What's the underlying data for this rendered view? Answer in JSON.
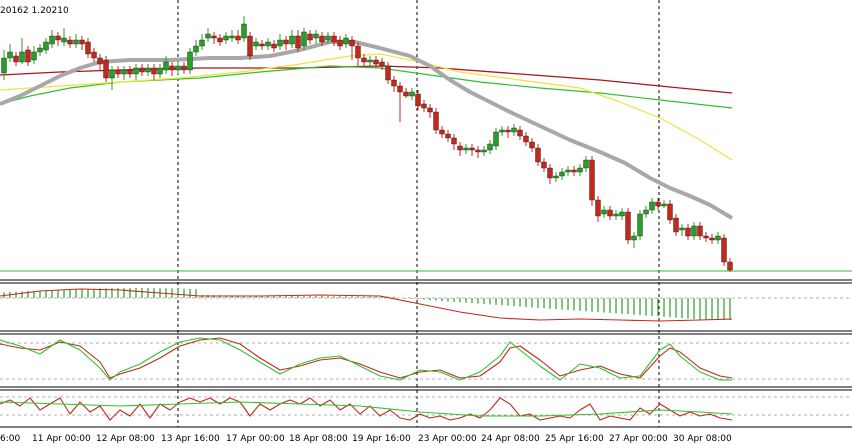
{
  "header": {
    "price_text": "20162 1.20210"
  },
  "colors": {
    "bull_candle": "#2a9d2a",
    "bear_candle": "#c0291b",
    "candle_wick": "#333333",
    "ma_thick": "#a8a8a8",
    "ma_yellow": "#f2e23a",
    "ma_green": "#2fc22f",
    "ma_red": "#a8161f",
    "divider": "#000000",
    "vline": "#000000"
  },
  "x_axis_labels": [
    "6:00",
    "11 Apr 00:00",
    "12 Apr 08:00",
    "13 Apr 16:00",
    "17 Apr 00:00",
    "18 Apr 08:00",
    "19 Apr 16:00",
    "23 Apr 00:00",
    "24 Apr 08:00",
    "25 Apr 16:00",
    "27 Apr 00:00",
    "30 Apr 08:00"
  ],
  "chart_data": {
    "type": "line",
    "panels": [
      {
        "name": "price",
        "style": "candlestick with moving averages"
      },
      {
        "name": "histogram oscillator",
        "style": "histogram with signal line"
      },
      {
        "name": "oscillator",
        "style": "two lines"
      },
      {
        "name": "oscillator",
        "style": "two lines"
      }
    ]
  }
}
